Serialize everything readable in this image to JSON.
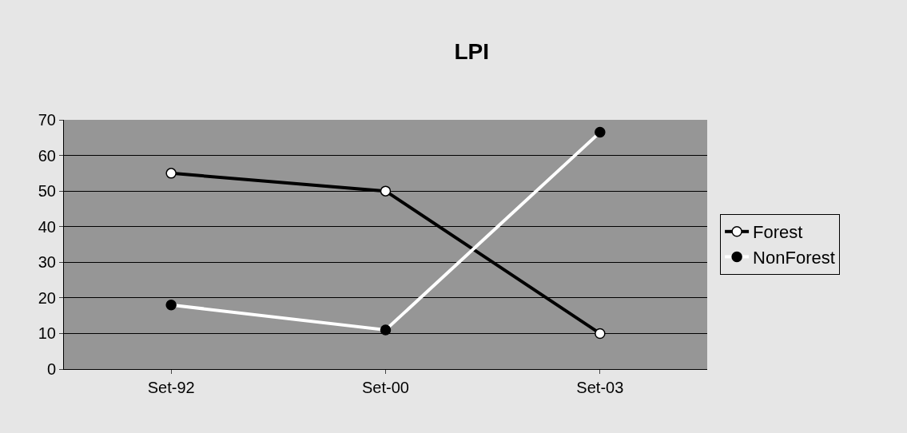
{
  "chart_data": {
    "type": "line",
    "title": "LPI",
    "categories": [
      "Set-92",
      "Set-00",
      "Set-03"
    ],
    "series": [
      {
        "name": "Forest",
        "color": "#000000",
        "values": [
          55,
          50,
          10
        ]
      },
      {
        "name": "NonForest",
        "color": "#ffffff",
        "values": [
          18,
          11,
          66.5
        ]
      }
    ],
    "ylim": [
      0,
      70
    ],
    "yticks": [
      0,
      10,
      20,
      30,
      40,
      50,
      60,
      70
    ],
    "grid": "y",
    "legend": "right",
    "marker": "circle",
    "line_style": "solid"
  }
}
